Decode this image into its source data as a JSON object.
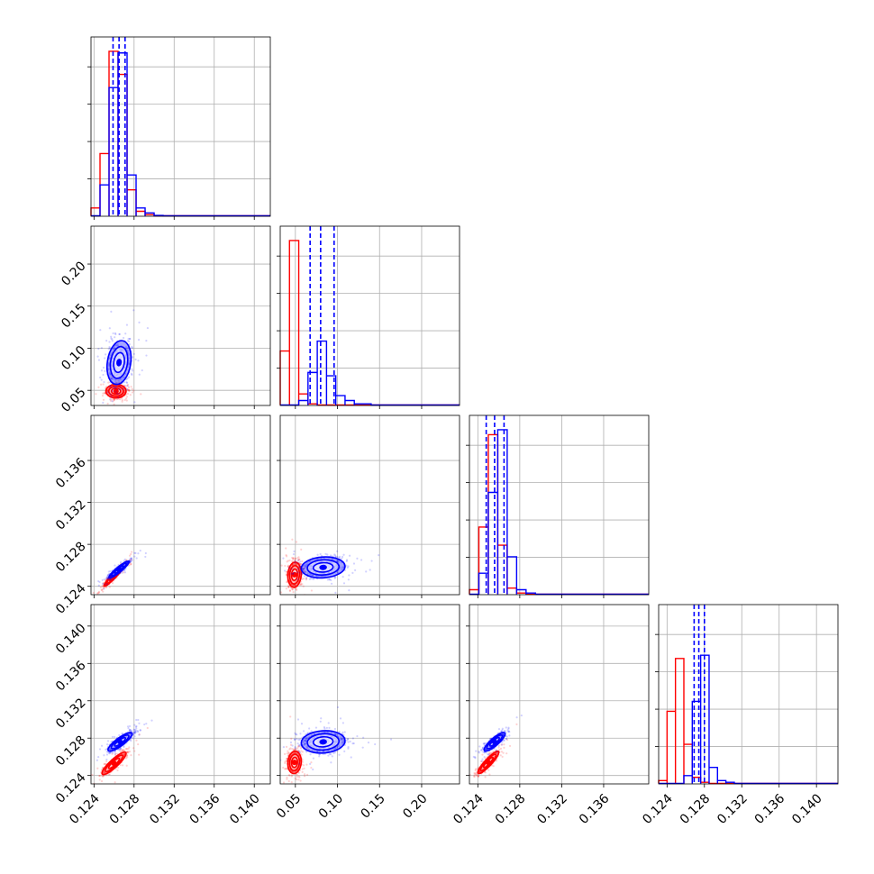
{
  "chart_data": {
    "type": "corner",
    "series": [
      {
        "name": "",
        "color": "#ff0000"
      },
      {
        "name": "",
        "color": "#0000ff"
      }
    ],
    "grid": true,
    "params": [
      {
        "range": [
          0.1237,
          0.1416
        ],
        "ticks": [
          "0.124",
          "0.128",
          "0.132",
          "0.136",
          "0.140"
        ],
        "tick_values": [
          0.124,
          0.128,
          0.132,
          0.136,
          0.14
        ]
      },
      {
        "range": [
          0.032,
          0.245
        ],
        "ticks": [
          "0.05",
          "0.10",
          "0.15",
          "0.20"
        ],
        "tick_values": [
          0.05,
          0.1,
          0.15,
          0.2
        ]
      },
      {
        "range": [
          0.1232,
          0.1403
        ],
        "ticks": [
          "0.124",
          "0.128",
          "0.132",
          "0.136"
        ],
        "tick_values": [
          0.124,
          0.128,
          0.132,
          0.136
        ]
      },
      {
        "range": [
          0.1231,
          0.1423
        ],
        "ticks": [
          "0.124",
          "0.128",
          "0.132",
          "0.136",
          "0.140"
        ],
        "tick_values": [
          0.124,
          0.128,
          0.132,
          0.136,
          0.14
        ]
      }
    ],
    "histograms": [
      {
        "red": [
          [
            0.1237,
            0.1246,
            0.05
          ],
          [
            0.1246,
            0.1255,
            0.38
          ],
          [
            0.1255,
            0.1264,
            1.0
          ],
          [
            0.1264,
            0.1273,
            0.86
          ],
          [
            0.1273,
            0.1282,
            0.16
          ],
          [
            0.1282,
            0.1291,
            0.03
          ],
          [
            0.1291,
            0.13,
            0.01
          ]
        ],
        "blue": [
          [
            0.1246,
            0.1255,
            0.19
          ],
          [
            0.1255,
            0.1264,
            0.78
          ],
          [
            0.1264,
            0.1273,
            0.99
          ],
          [
            0.1273,
            0.1282,
            0.25
          ],
          [
            0.1282,
            0.1291,
            0.05
          ],
          [
            0.1291,
            0.13,
            0.02
          ],
          [
            0.13,
            0.1309,
            0.005
          ]
        ],
        "quantiles": [
          0.1259,
          0.1265,
          0.1271
        ]
      },
      {
        "red": [
          [
            0.032,
            0.043,
            0.33
          ],
          [
            0.043,
            0.054,
            1.0
          ],
          [
            0.054,
            0.065,
            0.07
          ],
          [
            0.065,
            0.076,
            0.01
          ]
        ],
        "blue": [
          [
            0.054,
            0.065,
            0.03
          ],
          [
            0.065,
            0.076,
            0.2
          ],
          [
            0.076,
            0.087,
            0.39
          ],
          [
            0.087,
            0.098,
            0.18
          ],
          [
            0.098,
            0.109,
            0.06
          ],
          [
            0.109,
            0.12,
            0.03
          ],
          [
            0.12,
            0.14,
            0.01
          ]
        ],
        "quantiles": [
          0.0675,
          0.08,
          0.096
        ]
      },
      {
        "red": [
          [
            0.1232,
            0.1241,
            0.03
          ],
          [
            0.1241,
            0.125,
            0.41
          ],
          [
            0.125,
            0.1259,
            0.97
          ],
          [
            0.1259,
            0.1268,
            0.3
          ],
          [
            0.1268,
            0.1277,
            0.04
          ],
          [
            0.1277,
            0.1286,
            0.01
          ]
        ],
        "blue": [
          [
            0.1241,
            0.125,
            0.13
          ],
          [
            0.125,
            0.1259,
            0.62
          ],
          [
            0.1259,
            0.1268,
            1.0
          ],
          [
            0.1268,
            0.1277,
            0.23
          ],
          [
            0.1277,
            0.1286,
            0.03
          ],
          [
            0.1286,
            0.1295,
            0.01
          ]
        ],
        "quantiles": [
          0.1248,
          0.1256,
          0.1265
        ]
      },
      {
        "red": [
          [
            0.1231,
            0.124,
            0.02
          ],
          [
            0.124,
            0.1249,
            0.44
          ],
          [
            0.1249,
            0.1258,
            0.76
          ],
          [
            0.1258,
            0.1267,
            0.24
          ],
          [
            0.1267,
            0.1276,
            0.04
          ],
          [
            0.1276,
            0.1285,
            0.01
          ]
        ],
        "blue": [
          [
            0.1258,
            0.1267,
            0.05
          ],
          [
            0.1267,
            0.1276,
            0.5
          ],
          [
            0.1276,
            0.1285,
            0.78
          ],
          [
            0.1285,
            0.1294,
            0.1
          ],
          [
            0.1294,
            0.1303,
            0.02
          ],
          [
            0.1303,
            0.1312,
            0.01
          ]
        ],
        "quantiles": [
          0.1269,
          0.1274,
          0.128
        ]
      }
    ],
    "pairs": [
      {
        "x": 0,
        "y": 1,
        "red": {
          "mean": [
            0.1262,
            0.049
          ],
          "sd": [
            0.0005,
            0.004
          ],
          "rho": 0.0
        },
        "blue": {
          "mean": [
            0.1265,
            0.083
          ],
          "sd": [
            0.0006,
            0.013
          ],
          "rho": 0.2
        }
      },
      {
        "x": 0,
        "y": 2,
        "red": {
          "mean": [
            0.126,
            0.125
          ],
          "sd": [
            0.0005,
            0.0005
          ],
          "rho": 0.95
        },
        "blue": {
          "mean": [
            0.1265,
            0.1256
          ],
          "sd": [
            0.0005,
            0.0004
          ],
          "rho": 0.92
        }
      },
      {
        "x": 1,
        "y": 2,
        "red": {
          "mean": [
            0.049,
            0.1251
          ],
          "sd": [
            0.004,
            0.0006
          ],
          "rho": 0.1
        },
        "blue": {
          "mean": [
            0.083,
            0.1258
          ],
          "sd": [
            0.013,
            0.0005
          ],
          "rho": 0.1
        }
      },
      {
        "x": 0,
        "y": 3,
        "red": {
          "mean": [
            0.126,
            0.1253
          ],
          "sd": [
            0.0006,
            0.0006
          ],
          "rho": 0.88
        },
        "blue": {
          "mean": [
            0.1266,
            0.1276
          ],
          "sd": [
            0.0006,
            0.0005
          ],
          "rho": 0.85
        }
      },
      {
        "x": 1,
        "y": 3,
        "red": {
          "mean": [
            0.049,
            0.1254
          ],
          "sd": [
            0.004,
            0.0006
          ],
          "rho": 0.1
        },
        "blue": {
          "mean": [
            0.083,
            0.1276
          ],
          "sd": [
            0.013,
            0.0006
          ],
          "rho": 0.1
        }
      },
      {
        "x": 2,
        "y": 3,
        "red": {
          "mean": [
            0.125,
            0.1254
          ],
          "sd": [
            0.0005,
            0.0006
          ],
          "rho": 0.9
        },
        "blue": {
          "mean": [
            0.1256,
            0.1276
          ],
          "sd": [
            0.0005,
            0.0005
          ],
          "rho": 0.85
        }
      }
    ]
  }
}
